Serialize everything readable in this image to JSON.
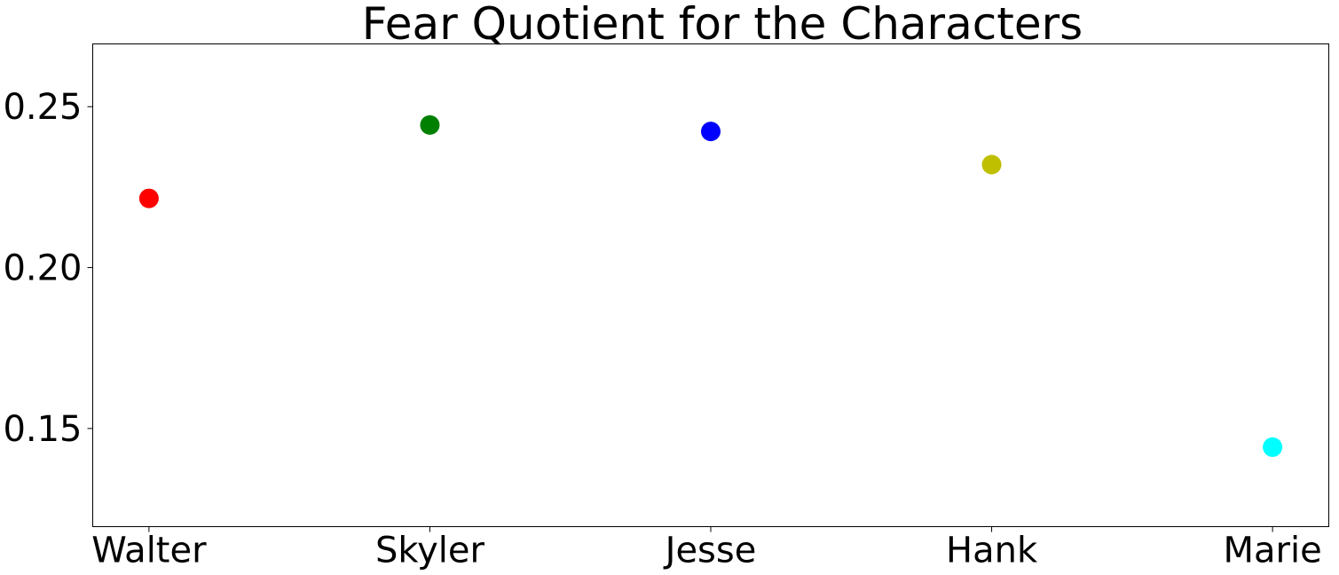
{
  "chart_data": {
    "type": "scatter",
    "title": "Fear Quotient for the Characters",
    "xlabel": "",
    "ylabel": "",
    "categories": [
      "Walter",
      "Skyler",
      "Jesse",
      "Hank",
      "Marie"
    ],
    "values": [
      0.2215,
      0.2443,
      0.2423,
      0.232,
      0.1442
    ],
    "colors": [
      "#ff0000",
      "#008000",
      "#0000ff",
      "#bfbf00",
      "#00ffff"
    ],
    "ylim": [
      0.1195,
      0.2695
    ],
    "yticks": [
      0.15,
      0.2,
      0.25
    ],
    "ytick_labels": [
      "0.15",
      "0.20",
      "0.25"
    ],
    "grid": false,
    "legend": "none"
  }
}
